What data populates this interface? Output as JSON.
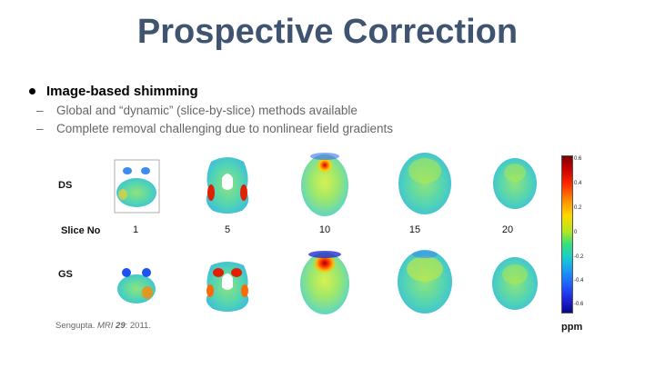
{
  "slide": {
    "title": "Prospective Correction",
    "bullet": "Image-based shimming",
    "subbullets": [
      "Global and “dynamic” (slice-by-slice) methods available",
      "Complete removal challenging due to nonlinear field gradients"
    ],
    "dash": "–"
  },
  "figure": {
    "row_labels": {
      "ds": "DS",
      "slice": "Slice No",
      "gs": "GS"
    },
    "slice_numbers": [
      "1",
      "5",
      "10",
      "15",
      "20"
    ],
    "colorbar_ticks": [
      "0.6",
      "0.4",
      "0.2",
      "0",
      "-0.2",
      "-0.4",
      "-0.6"
    ],
    "unit": "ppm"
  },
  "citation": {
    "author": "Sengupta. ",
    "journal": "MRI",
    "volume": "29",
    "rest": ": 2011."
  },
  "colors": {
    "title": "#3f5470",
    "subtext": "#666666"
  }
}
